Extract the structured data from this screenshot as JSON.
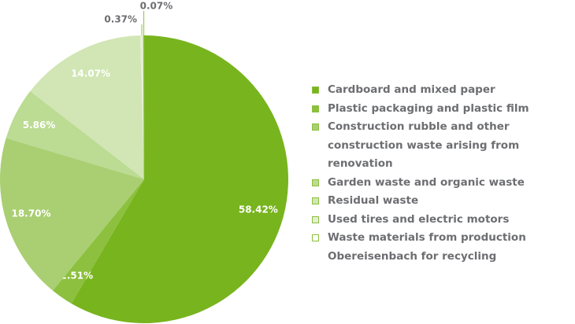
{
  "chart_data": {
    "type": "pie",
    "categories": [
      "Cardboard and mixed paper",
      "Plastic packaging and plastic film",
      "Construction rubble and other\nconstruction waste arising from renovation",
      "Garden waste and organic waste",
      "Residual waste",
      "Used tires and electric motors",
      "Waste materials from production\nObereisenbach for recycling"
    ],
    "values": [
      58.42,
      2.51,
      18.7,
      5.86,
      14.07,
      0.37,
      0.07
    ],
    "value_labels": [
      "58.42%",
      "2.51%",
      "18.70%",
      "5.86%",
      "14.07%",
      "0.37%",
      "0.07%"
    ],
    "colors": [
      "#78b41e",
      "#8cc03e",
      "#a9cf72",
      "#bcdb93",
      "#d1e6b4",
      "#e4efd3",
      "#ffffff"
    ],
    "legend": "right"
  }
}
